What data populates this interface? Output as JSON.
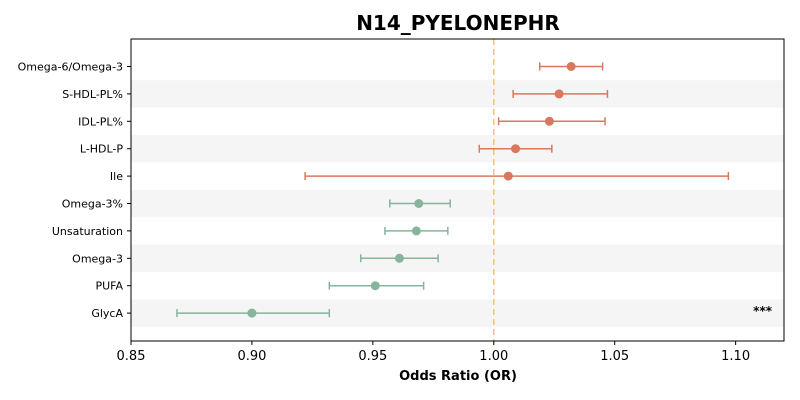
{
  "chart_data": {
    "type": "forest",
    "title": "N14_PYELONEPHR",
    "xlabel": "Odds Ratio (OR)",
    "xlim": [
      0.85,
      1.12
    ],
    "xticks": [
      "0.85",
      "0.90",
      "0.95",
      "1.00",
      "1.05",
      "1.10"
    ],
    "reference_line": 1.0,
    "rows": [
      {
        "label": "Omega-6/Omega-3",
        "or": 1.032,
        "ci_low": 1.019,
        "ci_high": 1.045,
        "direction": "positive",
        "significance": ""
      },
      {
        "label": "S-HDL-PL%",
        "or": 1.027,
        "ci_low": 1.008,
        "ci_high": 1.047,
        "direction": "positive",
        "significance": ""
      },
      {
        "label": "IDL-PL%",
        "or": 1.023,
        "ci_low": 1.002,
        "ci_high": 1.046,
        "direction": "positive",
        "significance": ""
      },
      {
        "label": "L-HDL-P",
        "or": 1.009,
        "ci_low": 0.994,
        "ci_high": 1.024,
        "direction": "positive",
        "significance": ""
      },
      {
        "label": "Ile",
        "or": 1.006,
        "ci_low": 0.922,
        "ci_high": 1.097,
        "direction": "positive",
        "significance": ""
      },
      {
        "label": "Omega-3%",
        "or": 0.969,
        "ci_low": 0.957,
        "ci_high": 0.982,
        "direction": "negative",
        "significance": ""
      },
      {
        "label": "Unsaturation",
        "or": 0.968,
        "ci_low": 0.955,
        "ci_high": 0.981,
        "direction": "negative",
        "significance": ""
      },
      {
        "label": "Omega-3",
        "or": 0.961,
        "ci_low": 0.945,
        "ci_high": 0.977,
        "direction": "negative",
        "significance": ""
      },
      {
        "label": "PUFA",
        "or": 0.951,
        "ci_low": 0.932,
        "ci_high": 0.971,
        "direction": "negative",
        "significance": ""
      },
      {
        "label": "GlycA",
        "or": 0.9,
        "ci_low": 0.869,
        "ci_high": 0.932,
        "direction": "negative",
        "significance": "***"
      }
    ],
    "colors": {
      "positive": "#d9785f",
      "negative": "#86b59c",
      "reference_line": "#f0c27b",
      "band": "#f5f5f5"
    }
  }
}
